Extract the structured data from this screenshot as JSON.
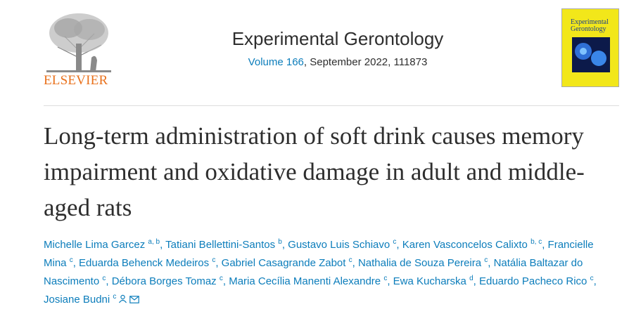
{
  "publisher": {
    "name": "ELSEVIER"
  },
  "journal": {
    "title": "Experimental Gerontology",
    "volume": "Volume 166",
    "issue_info": ", September 2022, 111873"
  },
  "cover": {
    "title": "Experimental Gerontology"
  },
  "article": {
    "title": "Long-term administration of soft drink causes memory impairment and oxidative damage in adult and middle-aged rats",
    "author_separator": ", ",
    "authors": [
      {
        "name": "Michelle Lima Garcez",
        "affiliations": "a, b"
      },
      {
        "name": "Tatiani Bellettini-Santos",
        "affiliations": "b"
      },
      {
        "name": "Gustavo Luis Schiavo",
        "affiliations": "c"
      },
      {
        "name": "Karen Vasconcelos Calixto",
        "affiliations": "b, c"
      },
      {
        "name": "Francielle Mina",
        "affiliations": "c"
      },
      {
        "name": "Eduarda Behenck Medeiros",
        "affiliations": "c"
      },
      {
        "name": "Gabriel Casagrande Zabot",
        "affiliations": "c"
      },
      {
        "name": "Nathalia de Souza Pereira",
        "affiliations": "c"
      },
      {
        "name": "Natália Baltazar do Nascimento",
        "affiliations": "c"
      },
      {
        "name": "Débora Borges Tomaz",
        "affiliations": "c"
      },
      {
        "name": "Maria Cecília Manenti Alexandre",
        "affiliations": "c"
      },
      {
        "name": "Ewa Kucharska",
        "affiliations": "d"
      },
      {
        "name": "Eduardo Pacheco Rico",
        "affiliations": "c"
      },
      {
        "name": "Josiane Budni",
        "affiliations": "c",
        "corresponding": true
      }
    ]
  }
}
